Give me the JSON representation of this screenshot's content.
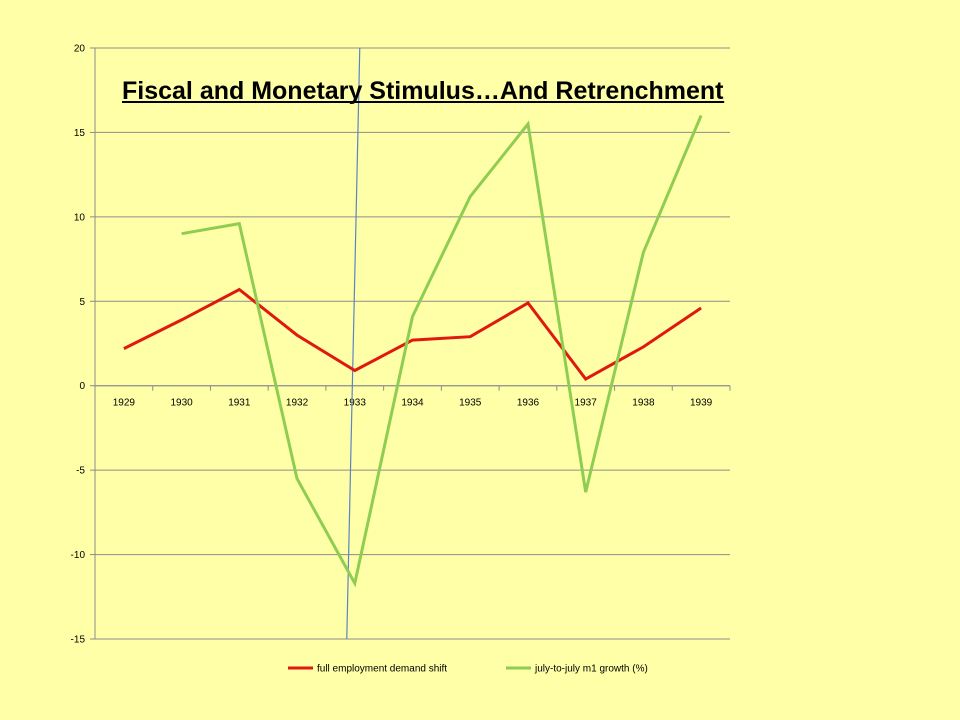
{
  "chart_data": {
    "type": "line",
    "title": "Fiscal and Monetary Stimulus…And Retrenchment",
    "categories": [
      "1929",
      "1930",
      "1931",
      "1932",
      "1933",
      "1934",
      "1935",
      "1936",
      "1937",
      "1938",
      "1939"
    ],
    "ylim": [
      -15,
      20
    ],
    "yticks": [
      "20",
      "15",
      "10",
      "5",
      "0",
      "-5",
      "-10",
      "-15"
    ],
    "ytick_values": [
      20,
      15,
      10,
      5,
      0,
      -5,
      -10,
      -15
    ],
    "grid": "horizontal",
    "legend_position": "bottom",
    "series": [
      {
        "name": "full employment demand shift",
        "color": "#e0190e",
        "values": [
          2.2,
          3.9,
          5.7,
          3.0,
          0.9,
          2.7,
          2.9,
          4.9,
          0.4,
          2.3,
          4.6
        ]
      },
      {
        "name": "july-to-july m1 growth (%)",
        "color": "#8fcd52",
        "values": [
          null,
          9.0,
          9.6,
          -5.5,
          -11.7,
          4.1,
          11.2,
          15.5,
          -6.3,
          7.9,
          16.0
        ]
      }
    ],
    "annotation_line": {
      "color": "#5b84c4",
      "x_category": "1933"
    }
  }
}
